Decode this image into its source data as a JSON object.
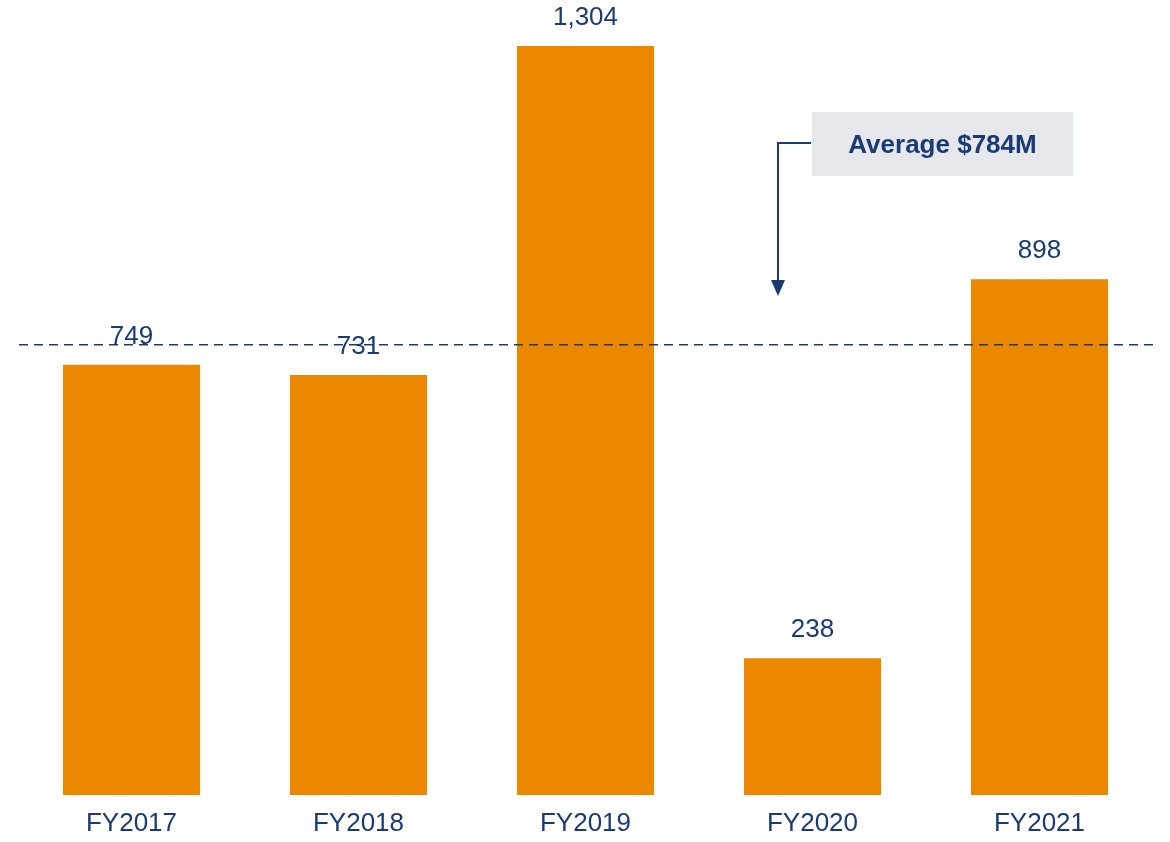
{
  "chart_data": {
    "type": "bar",
    "categories": [
      "FY2017",
      "FY2018",
      "FY2019",
      "FY2020",
      "FY2021"
    ],
    "values": [
      749,
      731,
      1304,
      238,
      898
    ],
    "value_labels": [
      "749",
      "731",
      "1,304",
      "238",
      "898"
    ],
    "color": "#ec8800",
    "ref_lines": [
      {
        "axis": "y",
        "value": 784,
        "label": "Average $784M",
        "color": "#1a3a75",
        "line_style": "dashed"
      }
    ]
  }
}
